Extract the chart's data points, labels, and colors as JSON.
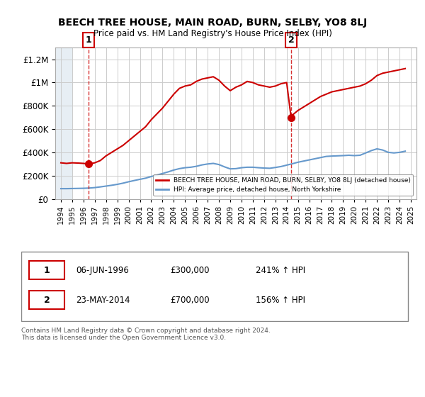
{
  "title": "BEECH TREE HOUSE, MAIN ROAD, BURN, SELBY, YO8 8LJ",
  "subtitle": "Price paid vs. HM Land Registry's House Price Index (HPI)",
  "footer": "Contains HM Land Registry data © Crown copyright and database right 2024.\nThis data is licensed under the Open Government Licence v3.0.",
  "legend_line1": "BEECH TREE HOUSE, MAIN ROAD, BURN, SELBY, YO8 8LJ (detached house)",
  "legend_line2": "HPI: Average price, detached house, North Yorkshire",
  "transaction1": {
    "label": "1",
    "date": "06-JUN-1996",
    "price": 300000,
    "hpi_pct": "241%",
    "x": 1996.44
  },
  "transaction2": {
    "label": "2",
    "date": "23-MAY-2014",
    "price": 700000,
    "hpi_pct": "156%",
    "x": 2014.39
  },
  "table_row1": "1    06-JUN-1996    £300,000    241% ↑ HPI",
  "table_row2": "2    23-MAY-2014    £700,000    156% ↑ HPI",
  "red_line_color": "#cc0000",
  "blue_line_color": "#6699cc",
  "hatch_color": "#ccddee",
  "background_color": "#f0f4f8",
  "plot_bg_color": "#ffffff",
  "ylim": [
    0,
    1300000
  ],
  "xlim": [
    1993.5,
    2025.5
  ],
  "red_x": [
    1994.0,
    1994.5,
    1995.0,
    1995.5,
    1996.0,
    1996.44,
    1997.0,
    1997.5,
    1998.0,
    1998.5,
    1999.0,
    1999.5,
    2000.0,
    2000.5,
    2001.0,
    2001.5,
    2002.0,
    2002.5,
    2003.0,
    2003.5,
    2004.0,
    2004.5,
    2005.0,
    2005.5,
    2006.0,
    2006.5,
    2007.0,
    2007.5,
    2008.0,
    2008.5,
    2009.0,
    2009.5,
    2010.0,
    2010.5,
    2011.0,
    2011.5,
    2012.0,
    2012.5,
    2013.0,
    2013.5,
    2014.0,
    2014.39,
    2014.5,
    2015.0,
    2015.5,
    2016.0,
    2016.5,
    2017.0,
    2017.5,
    2018.0,
    2018.5,
    2019.0,
    2019.5,
    2020.0,
    2020.5,
    2021.0,
    2021.5,
    2022.0,
    2022.5,
    2023.0,
    2023.5,
    2024.0,
    2024.5
  ],
  "red_y": [
    310000,
    305000,
    310000,
    308000,
    305000,
    300000,
    310000,
    330000,
    370000,
    400000,
    430000,
    460000,
    500000,
    540000,
    580000,
    620000,
    680000,
    730000,
    780000,
    840000,
    900000,
    950000,
    970000,
    980000,
    1010000,
    1030000,
    1040000,
    1050000,
    1020000,
    970000,
    930000,
    960000,
    980000,
    1010000,
    1000000,
    980000,
    970000,
    960000,
    970000,
    990000,
    1000000,
    700000,
    720000,
    760000,
    790000,
    820000,
    850000,
    880000,
    900000,
    920000,
    930000,
    940000,
    950000,
    960000,
    970000,
    990000,
    1020000,
    1060000,
    1080000,
    1090000,
    1100000,
    1110000,
    1120000
  ],
  "blue_x": [
    1994.0,
    1994.5,
    1995.0,
    1995.5,
    1996.0,
    1996.5,
    1997.0,
    1997.5,
    1998.0,
    1998.5,
    1999.0,
    1999.5,
    2000.0,
    2000.5,
    2001.0,
    2001.5,
    2002.0,
    2002.5,
    2003.0,
    2003.5,
    2004.0,
    2004.5,
    2005.0,
    2005.5,
    2006.0,
    2006.5,
    2007.0,
    2007.5,
    2008.0,
    2008.5,
    2009.0,
    2009.5,
    2010.0,
    2010.5,
    2011.0,
    2011.5,
    2012.0,
    2012.5,
    2013.0,
    2013.5,
    2014.0,
    2014.5,
    2015.0,
    2015.5,
    2016.0,
    2016.5,
    2017.0,
    2017.5,
    2018.0,
    2018.5,
    2019.0,
    2019.5,
    2020.0,
    2020.5,
    2021.0,
    2021.5,
    2022.0,
    2022.5,
    2023.0,
    2023.5,
    2024.0,
    2024.5
  ],
  "blue_y": [
    88000,
    88000,
    89000,
    90000,
    91000,
    93000,
    97000,
    103000,
    110000,
    117000,
    125000,
    135000,
    147000,
    158000,
    168000,
    178000,
    192000,
    205000,
    218000,
    232000,
    248000,
    260000,
    268000,
    272000,
    280000,
    292000,
    300000,
    305000,
    295000,
    275000,
    258000,
    260000,
    268000,
    272000,
    272000,
    268000,
    265000,
    263000,
    270000,
    278000,
    290000,
    302000,
    315000,
    325000,
    335000,
    345000,
    355000,
    365000,
    368000,
    370000,
    372000,
    375000,
    372000,
    375000,
    395000,
    415000,
    430000,
    420000,
    400000,
    395000,
    400000,
    410000
  ]
}
